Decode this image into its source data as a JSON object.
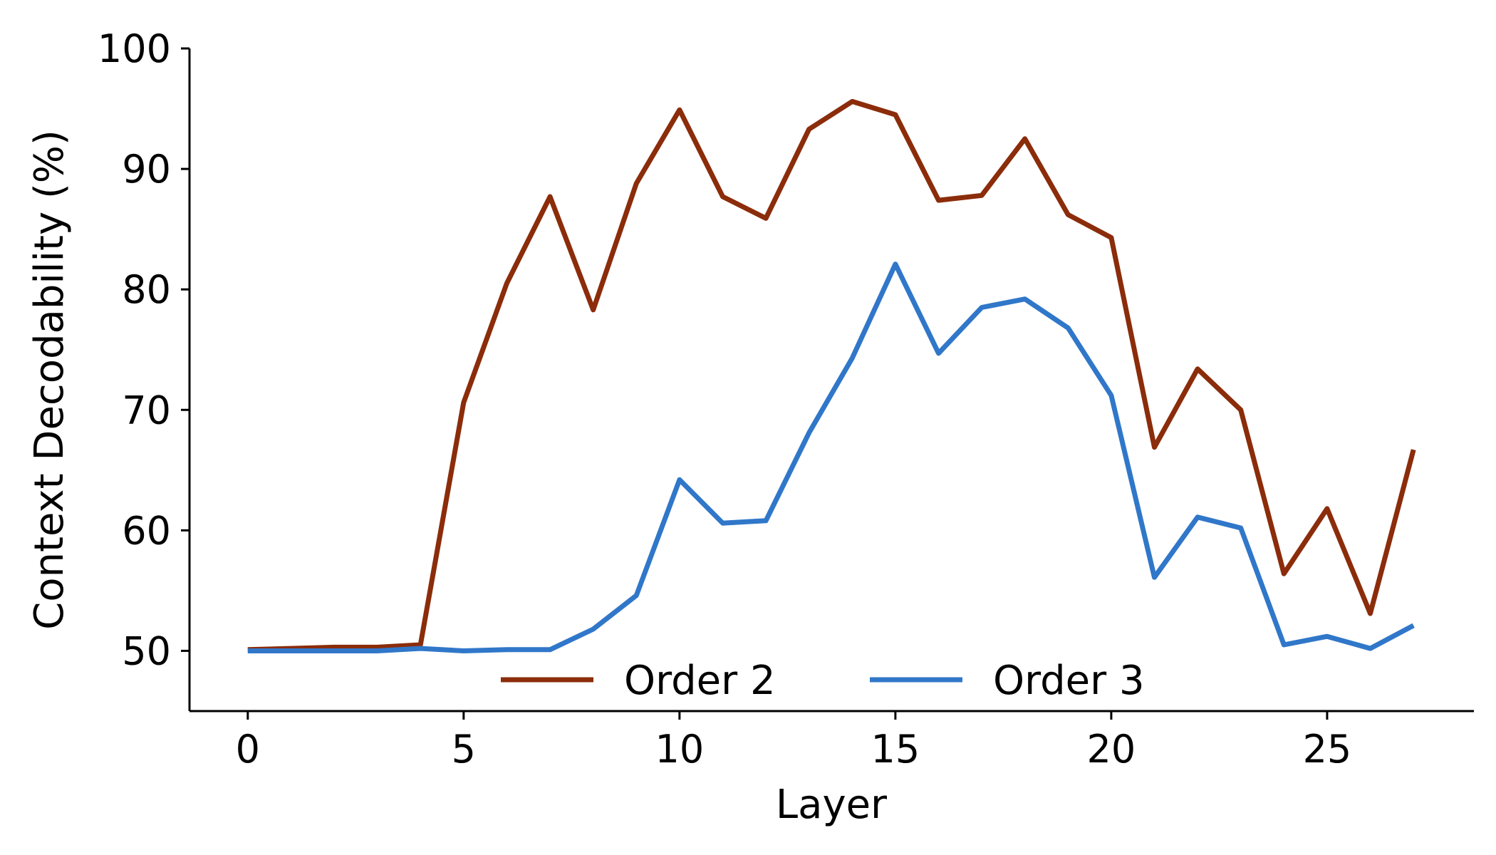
{
  "chart_data": {
    "type": "line",
    "xlabel": "Layer",
    "ylabel": "Context Decodability (%)",
    "xlim": [
      -1.35,
      28.4
    ],
    "ylim": [
      45,
      100
    ],
    "xticks": [
      0,
      5,
      10,
      15,
      20,
      25
    ],
    "yticks": [
      50,
      60,
      70,
      80,
      90,
      100
    ],
    "x": [
      0,
      1,
      2,
      3,
      4,
      5,
      6,
      7,
      8,
      9,
      10,
      11,
      12,
      13,
      14,
      15,
      16,
      17,
      18,
      19,
      20,
      21,
      22,
      23,
      24,
      25,
      26,
      27
    ],
    "grid": false,
    "legend_position": "bottom-center",
    "series": [
      {
        "name": "Order 2",
        "color": "#8b2c0a",
        "values": [
          50.1,
          50.2,
          50.3,
          50.3,
          50.5,
          70.6,
          80.5,
          87.7,
          78.3,
          88.8,
          94.9,
          87.7,
          85.9,
          93.3,
          95.6,
          94.5,
          87.4,
          87.8,
          92.5,
          86.2,
          84.3,
          66.9,
          73.4,
          70.0,
          56.4,
          61.8,
          53.1,
          66.7
        ]
      },
      {
        "name": "Order 3",
        "color": "#3077c9",
        "values": [
          50.0,
          50.0,
          50.0,
          50.0,
          50.2,
          50.0,
          50.1,
          50.1,
          51.8,
          54.6,
          64.2,
          60.6,
          60.8,
          68.1,
          74.3,
          82.1,
          74.7,
          78.5,
          79.2,
          76.8,
          71.2,
          56.1,
          61.1,
          60.2,
          50.5,
          51.2,
          50.2,
          52.1
        ]
      }
    ]
  }
}
